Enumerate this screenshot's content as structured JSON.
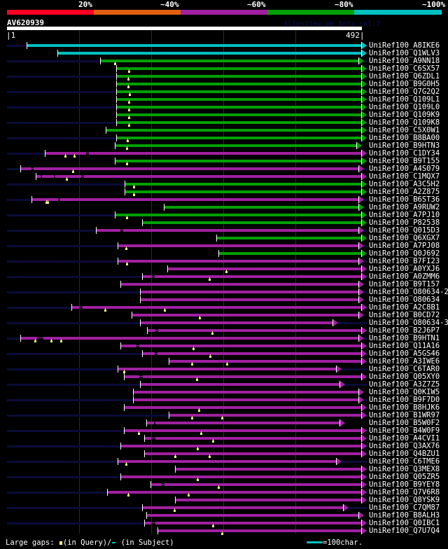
{
  "header": {
    "percent_labels": [
      "20%",
      "~40%",
      "~60%",
      "~80%",
      "~100%"
    ],
    "color_legend": [
      "#ff0022",
      "#e06010",
      "#a020a0",
      "#00a000",
      "#00c0c0"
    ],
    "query_name": "AV620939",
    "watermark": "AlignView.pm Beta rel.7",
    "query_start": "|1",
    "query_end": "492|",
    "query_length": 492
  },
  "colors": {
    "cyan": "#00c0c0",
    "green": "#00a000",
    "magenta": "#a020a0",
    "extension": "#0b0b3a",
    "gap_marker": "#ffff80"
  },
  "hits": [
    {
      "label": "UniRef100_A8IKE6",
      "start": 28,
      "end": 492,
      "color": "cyan",
      "ext": true,
      "qgaps": [],
      "sgaps": []
    },
    {
      "label": "UniRef100_Q1WLV3",
      "start": 71,
      "end": 492,
      "color": "cyan",
      "ext": false,
      "qgaps": [],
      "sgaps": []
    },
    {
      "label": "UniRef100_A9NN18",
      "start": 130,
      "end": 488,
      "color": "green",
      "ext": true,
      "qgaps": [
        150
      ],
      "sgaps": []
    },
    {
      "label": "UniRef100_C6SX57",
      "start": 152,
      "end": 492,
      "color": "green",
      "ext": false,
      "qgaps": [
        170
      ],
      "sgaps": []
    },
    {
      "label": "UniRef100_Q6ZDL1",
      "start": 152,
      "end": 492,
      "color": "green",
      "ext": true,
      "qgaps": [
        169
      ],
      "sgaps": []
    },
    {
      "label": "UniRef100_B9G0H5",
      "start": 152,
      "end": 492,
      "color": "green",
      "ext": false,
      "qgaps": [
        169
      ],
      "sgaps": []
    },
    {
      "label": "UniRef100_Q7G2Q2",
      "start": 152,
      "end": 492,
      "color": "green",
      "ext": true,
      "qgaps": [
        171
      ],
      "sgaps": []
    },
    {
      "label": "UniRef100_Q109L1",
      "start": 152,
      "end": 492,
      "color": "green",
      "ext": false,
      "qgaps": [
        170
      ],
      "sgaps": []
    },
    {
      "label": "UniRef100_Q109L0",
      "start": 152,
      "end": 492,
      "color": "green",
      "ext": true,
      "qgaps": [
        170
      ],
      "sgaps": []
    },
    {
      "label": "UniRef100_Q109K9",
      "start": 152,
      "end": 492,
      "color": "green",
      "ext": false,
      "qgaps": [
        170
      ],
      "sgaps": []
    },
    {
      "label": "UniRef100_Q109K8",
      "start": 152,
      "end": 492,
      "color": "green",
      "ext": true,
      "qgaps": [
        170
      ],
      "sgaps": []
    },
    {
      "label": "UniRef100_C5X0W1",
      "start": 138,
      "end": 492,
      "color": "green",
      "ext": false,
      "qgaps": [],
      "sgaps": []
    },
    {
      "label": "UniRef100_B8BA00",
      "start": 152,
      "end": 492,
      "color": "green",
      "ext": true,
      "qgaps": [
        168
      ],
      "sgaps": []
    },
    {
      "label": "UniRef100_B9HTN3",
      "start": 150,
      "end": 485,
      "color": "green",
      "ext": false,
      "qgaps": [
        167
      ],
      "sgaps": []
    },
    {
      "label": "UniRef100_C1DY34",
      "start": 53,
      "end": 492,
      "color": "magenta",
      "ext": true,
      "qgaps": [
        82,
        94
      ],
      "sgaps": [
        [
          111,
          115
        ]
      ]
    },
    {
      "label": "UniRef100_B9T155",
      "start": 150,
      "end": 492,
      "color": "green",
      "ext": false,
      "qgaps": [
        167
      ],
      "sgaps": []
    },
    {
      "label": "UniRef100_A4S079",
      "start": 19,
      "end": 488,
      "color": "magenta",
      "ext": true,
      "qgaps": [
        92
      ],
      "sgaps": [
        [
          35,
          38
        ]
      ]
    },
    {
      "label": "UniRef100_C1MQX7",
      "start": 41,
      "end": 492,
      "color": "magenta",
      "ext": false,
      "qgaps": [
        83
      ],
      "sgaps": [
        [
          48,
          50
        ],
        [
          66,
          68
        ],
        [
          104,
          108
        ]
      ]
    },
    {
      "label": "UniRef100_A3C5H2",
      "start": 164,
      "end": 492,
      "color": "green",
      "ext": true,
      "qgaps": [
        177
      ],
      "sgaps": []
    },
    {
      "label": "UniRef100_A2Z875",
      "start": 164,
      "end": 492,
      "color": "green",
      "ext": false,
      "qgaps": [
        177
      ],
      "sgaps": []
    },
    {
      "label": "UniRef100_B6ST36",
      "start": 35,
      "end": 488,
      "color": "magenta",
      "ext": true,
      "qgaps": [
        55,
        57
      ],
      "sgaps": [
        [
          72,
          75
        ]
      ]
    },
    {
      "label": "UniRef100_A9RUW2",
      "start": 218,
      "end": 488,
      "color": "green",
      "ext": false,
      "qgaps": [],
      "sgaps": []
    },
    {
      "label": "UniRef100_A7PJ10",
      "start": 150,
      "end": 492,
      "color": "green",
      "ext": true,
      "qgaps": [
        167
      ],
      "sgaps": []
    },
    {
      "label": "UniRef100_P82538",
      "start": 188,
      "end": 492,
      "color": "green",
      "ext": false,
      "qgaps": [],
      "sgaps": []
    },
    {
      "label": "UniRef100_Q015D3",
      "start": 124,
      "end": 488,
      "color": "magenta",
      "ext": true,
      "qgaps": [],
      "sgaps": [
        [
          158,
          162
        ]
      ]
    },
    {
      "label": "UniRef100_Q6XGX7",
      "start": 291,
      "end": 492,
      "color": "green",
      "ext": false,
      "qgaps": [],
      "sgaps": []
    },
    {
      "label": "UniRef100_A7PJ08",
      "start": 154,
      "end": 488,
      "color": "magenta",
      "ext": true,
      "qgaps": [
        166
      ],
      "sgaps": []
    },
    {
      "label": "UniRef100_Q0J692",
      "start": 294,
      "end": 492,
      "color": "green",
      "ext": false,
      "qgaps": [],
      "sgaps": []
    },
    {
      "label": "UniRef100_B7FI23",
      "start": 154,
      "end": 488,
      "color": "magenta",
      "ext": true,
      "qgaps": [
        167
      ],
      "sgaps": []
    },
    {
      "label": "UniRef100_A0YXJ6",
      "start": 223,
      "end": 492,
      "color": "magenta",
      "ext": false,
      "qgaps": [
        305
      ],
      "sgaps": []
    },
    {
      "label": "UniRef100_A0ZMM6",
      "start": 188,
      "end": 492,
      "color": "magenta",
      "ext": true,
      "qgaps": [
        281
      ],
      "sgaps": [
        [
          202,
          206
        ]
      ]
    },
    {
      "label": "UniRef100_B9T157",
      "start": 158,
      "end": 488,
      "color": "magenta",
      "ext": false,
      "qgaps": [],
      "sgaps": []
    },
    {
      "label": "UniRef100_O80634-2",
      "start": 185,
      "end": 488,
      "color": "magenta",
      "ext": true,
      "qgaps": [],
      "sgaps": []
    },
    {
      "label": "UniRef100_O80634",
      "start": 185,
      "end": 488,
      "color": "magenta",
      "ext": false,
      "qgaps": [],
      "sgaps": []
    },
    {
      "label": "UniRef100_A2C8B1",
      "start": 90,
      "end": 492,
      "color": "magenta",
      "ext": true,
      "qgaps": [
        137,
        219
      ],
      "sgaps": [
        [
          101,
          106
        ]
      ]
    },
    {
      "label": "UniRef100_B0CD72",
      "start": 174,
      "end": 488,
      "color": "magenta",
      "ext": false,
      "qgaps": [
        268
      ],
      "sgaps": []
    },
    {
      "label": "UniRef100_O80634-3",
      "start": 185,
      "end": 452,
      "color": "magenta",
      "ext": true,
      "qgaps": [],
      "sgaps": []
    },
    {
      "label": "UniRef100_B2J6P7",
      "start": 195,
      "end": 492,
      "color": "magenta",
      "ext": false,
      "qgaps": [
        285
      ],
      "sgaps": [
        [
          207,
          211
        ]
      ]
    },
    {
      "label": "UniRef100_B9HTN1",
      "start": 19,
      "end": 488,
      "color": "magenta",
      "ext": true,
      "qgaps": [
        40,
        62,
        76
      ],
      "sgaps": [
        [
          43,
          51
        ]
      ]
    },
    {
      "label": "UniRef100_Q11A16",
      "start": 158,
      "end": 492,
      "color": "magenta",
      "ext": false,
      "qgaps": [
        259
      ],
      "sgaps": [
        [
          181,
          184
        ]
      ]
    },
    {
      "label": "UniRef100_A5GS46",
      "start": 188,
      "end": 492,
      "color": "magenta",
      "ext": true,
      "qgaps": [
        282
      ],
      "sgaps": [
        [
          206,
          210
        ]
      ]
    },
    {
      "label": "UniRef100_A3IWE6",
      "start": 225,
      "end": 492,
      "color": "magenta",
      "ext": false,
      "qgaps": [
        257,
        306
      ],
      "sgaps": []
    },
    {
      "label": "UniRef100_C6TAR0",
      "start": 154,
      "end": 457,
      "color": "magenta",
      "ext": true,
      "qgaps": [
        163
      ],
      "sgaps": []
    },
    {
      "label": "UniRef100_Q05XY0",
      "start": 163,
      "end": 492,
      "color": "magenta",
      "ext": false,
      "qgaps": [
        264
      ],
      "sgaps": [
        [
          184,
          189
        ]
      ]
    },
    {
      "label": "UniRef100_A3Z7Z5",
      "start": 185,
      "end": 462,
      "color": "magenta",
      "ext": true,
      "qgaps": [],
      "sgaps": []
    },
    {
      "label": "UniRef100_Q0KIW5",
      "start": 176,
      "end": 488,
      "color": "magenta",
      "ext": false,
      "qgaps": [],
      "sgaps": []
    },
    {
      "label": "UniRef100_B9F7D0",
      "start": 176,
      "end": 488,
      "color": "magenta",
      "ext": true,
      "qgaps": [],
      "sgaps": []
    },
    {
      "label": "UniRef100_B8HJK6",
      "start": 163,
      "end": 492,
      "color": "magenta",
      "ext": false,
      "qgaps": [
        267
      ],
      "sgaps": []
    },
    {
      "label": "UniRef100_B1WR97",
      "start": 225,
      "end": 492,
      "color": "magenta",
      "ext": true,
      "qgaps": [
        257,
        299
      ],
      "sgaps": []
    },
    {
      "label": "UniRef100_B5W0F2",
      "start": 194,
      "end": 462,
      "color": "magenta",
      "ext": false,
      "qgaps": [],
      "sgaps": [
        [
          205,
          207
        ]
      ]
    },
    {
      "label": "UniRef100_B4W0F9",
      "start": 163,
      "end": 492,
      "color": "magenta",
      "ext": true,
      "qgaps": [
        183,
        270
      ],
      "sgaps": []
    },
    {
      "label": "UniRef100_A4CVI1",
      "start": 191,
      "end": 492,
      "color": "magenta",
      "ext": false,
      "qgaps": [
        286
      ],
      "sgaps": [
        [
          201,
          207
        ]
      ]
    },
    {
      "label": "UniRef100_Q3AX76",
      "start": 158,
      "end": 492,
      "color": "magenta",
      "ext": true,
      "qgaps": [
        265
      ],
      "sgaps": []
    },
    {
      "label": "UniRef100_Q4BZU1",
      "start": 191,
      "end": 492,
      "color": "magenta",
      "ext": false,
      "qgaps": [
        234,
        281
      ],
      "sgaps": []
    },
    {
      "label": "UniRef100_C6TME6",
      "start": 154,
      "end": 457,
      "color": "magenta",
      "ext": true,
      "qgaps": [
        166
      ],
      "sgaps": []
    },
    {
      "label": "UniRef100_Q3MEX8",
      "start": 234,
      "end": 492,
      "color": "magenta",
      "ext": false,
      "qgaps": [],
      "sgaps": []
    },
    {
      "label": "UniRef100_Q05ZR5",
      "start": 158,
      "end": 492,
      "color": "magenta",
      "ext": true,
      "qgaps": [
        265
      ],
      "sgaps": []
    },
    {
      "label": "UniRef100_B9YEY8",
      "start": 200,
      "end": 492,
      "color": "magenta",
      "ext": false,
      "qgaps": [
        294
      ],
      "sgaps": [
        [
          215,
          219
        ]
      ]
    },
    {
      "label": "UniRef100_Q7V6R8",
      "start": 140,
      "end": 492,
      "color": "magenta",
      "ext": true,
      "qgaps": [
        169,
        252
      ],
      "sgaps": []
    },
    {
      "label": "UniRef100_Q8YSK9",
      "start": 234,
      "end": 492,
      "color": "magenta",
      "ext": false,
      "qgaps": [],
      "sgaps": []
    },
    {
      "label": "UniRef100_C7QM87",
      "start": 188,
      "end": 467,
      "color": "magenta",
      "ext": true,
      "qgaps": [
        233
      ],
      "sgaps": []
    },
    {
      "label": "UniRef100_B8ALH3",
      "start": 194,
      "end": 488,
      "color": "magenta",
      "ext": false,
      "qgaps": [],
      "sgaps": []
    },
    {
      "label": "UniRef100_Q0IBC1",
      "start": 191,
      "end": 492,
      "color": "magenta",
      "ext": true,
      "qgaps": [
        286
      ],
      "sgaps": [
        [
          201,
          207
        ]
      ]
    },
    {
      "label": "UniRef100_Q7U7Q4",
      "start": 210,
      "end": 492,
      "color": "magenta",
      "ext": false,
      "qgaps": [
        299
      ],
      "sgaps": []
    }
  ],
  "footer": {
    "legend_prefix": "Large gaps:",
    "legend_query": "(in Query)/",
    "legend_subject": "(in Subject)",
    "scale_label": "=100char."
  }
}
